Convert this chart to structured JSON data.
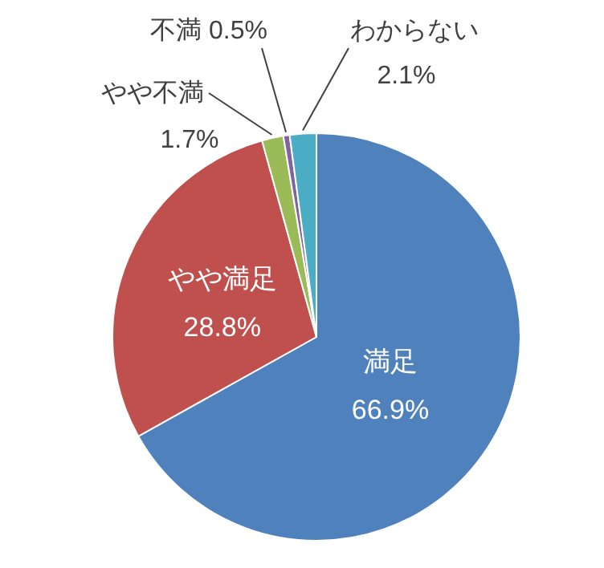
{
  "chart_data": {
    "type": "pie",
    "categories": [
      "満足",
      "やや満足",
      "やや不満",
      "不満",
      "わからない"
    ],
    "values": [
      66.9,
      28.8,
      1.7,
      0.5,
      2.1
    ],
    "value_labels": [
      "66.9%",
      "28.8%",
      "1.7%",
      "0.5%",
      "2.1%"
    ],
    "colors": [
      "#4f81bd",
      "#c0504d",
      "#9bbb59",
      "#8064a2",
      "#4bacc6"
    ]
  }
}
